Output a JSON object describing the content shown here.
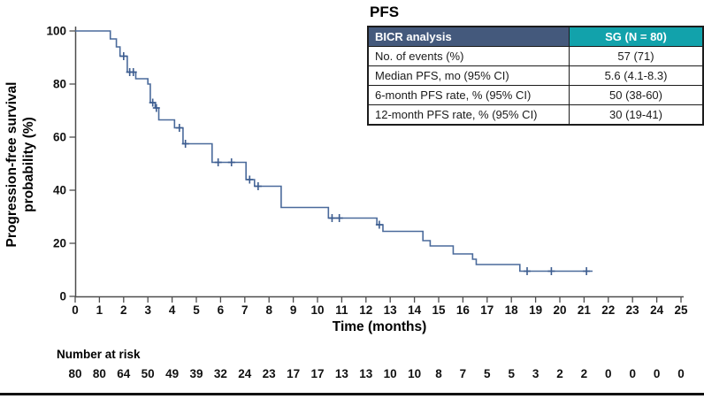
{
  "page": {
    "background": "#ffffff",
    "bottom_rule_color": "#111111"
  },
  "figure": {
    "title": "PFS"
  },
  "table": {
    "header": {
      "label_col": "BICR analysis",
      "value_col": "SG (N = 80)"
    },
    "header_bg": "#44597c",
    "header_accent_bg": "#12a2ab",
    "rows": [
      {
        "label": "No. of events (%)",
        "value": "57 (71)"
      },
      {
        "label": "Median PFS, mo (95% CI)",
        "value": "5.6 (4.1-8.3)"
      },
      {
        "label": "6-month PFS rate, % (95% CI)",
        "value": "50 (38-60)"
      },
      {
        "label": "12-month PFS rate, % (95% CI)",
        "value": "30 (19-41)"
      }
    ]
  },
  "chart_data": {
    "type": "line",
    "subtype": "kaplan-meier-step",
    "title": "PFS",
    "xlabel": "Time (months)",
    "ylabel": "Progression-free survival probability (%)",
    "ylabel_lines": [
      "Progression-free survival",
      "probability (%)"
    ],
    "xlim": [
      0,
      25
    ],
    "ylim": [
      0,
      100
    ],
    "x_ticks": [
      0,
      1,
      2,
      3,
      4,
      5,
      6,
      7,
      8,
      9,
      10,
      11,
      12,
      13,
      14,
      15,
      16,
      17,
      18,
      19,
      20,
      21,
      22,
      23,
      24,
      25
    ],
    "y_ticks": [
      0,
      20,
      40,
      60,
      80,
      100
    ],
    "grid": false,
    "legend": "none",
    "axis_color": "#4d4d4d",
    "series": [
      {
        "name": "SG",
        "color": "#4a6a9b",
        "censor_color": "#3c5c8f",
        "end_time": 21.35,
        "steps": [
          [
            0,
            100
          ],
          [
            1.45,
            97
          ],
          [
            1.7,
            94
          ],
          [
            1.85,
            90.5
          ],
          [
            2.15,
            84.5
          ],
          [
            2.5,
            82
          ],
          [
            3.0,
            80
          ],
          [
            3.1,
            73
          ],
          [
            3.3,
            71
          ],
          [
            3.45,
            66.5
          ],
          [
            4.1,
            63.5
          ],
          [
            4.45,
            57.5
          ],
          [
            5.65,
            50.5
          ],
          [
            7.05,
            44
          ],
          [
            7.4,
            41.5
          ],
          [
            8.5,
            33.5
          ],
          [
            10.45,
            29.5
          ],
          [
            12.45,
            27
          ],
          [
            12.7,
            24.5
          ],
          [
            14.35,
            21
          ],
          [
            14.65,
            19
          ],
          [
            15.6,
            16
          ],
          [
            16.4,
            14
          ],
          [
            16.55,
            12
          ],
          [
            18.35,
            9.5
          ]
        ],
        "censors": [
          [
            2.0,
            90.5
          ],
          [
            2.25,
            84.5
          ],
          [
            2.4,
            84.5
          ],
          [
            3.2,
            73
          ],
          [
            3.35,
            71
          ],
          [
            4.3,
            63.5
          ],
          [
            4.55,
            57.5
          ],
          [
            5.9,
            50.5
          ],
          [
            6.45,
            50.5
          ],
          [
            7.2,
            44
          ],
          [
            7.55,
            41.5
          ],
          [
            10.6,
            29.5
          ],
          [
            10.9,
            29.5
          ],
          [
            12.55,
            27
          ],
          [
            18.65,
            9.5
          ],
          [
            19.65,
            9.5
          ],
          [
            21.1,
            9.5
          ]
        ]
      }
    ],
    "number_at_risk": {
      "label": "Number at risk",
      "times": [
        0,
        1,
        2,
        3,
        4,
        5,
        6,
        7,
        8,
        9,
        10,
        11,
        12,
        13,
        14,
        15,
        16,
        17,
        18,
        19,
        20,
        21,
        22,
        23,
        24,
        25
      ],
      "values": [
        80,
        80,
        64,
        50,
        49,
        39,
        32,
        24,
        23,
        17,
        17,
        13,
        13,
        10,
        10,
        8,
        7,
        5,
        5,
        3,
        2,
        2,
        0,
        0,
        0,
        0
      ]
    }
  }
}
